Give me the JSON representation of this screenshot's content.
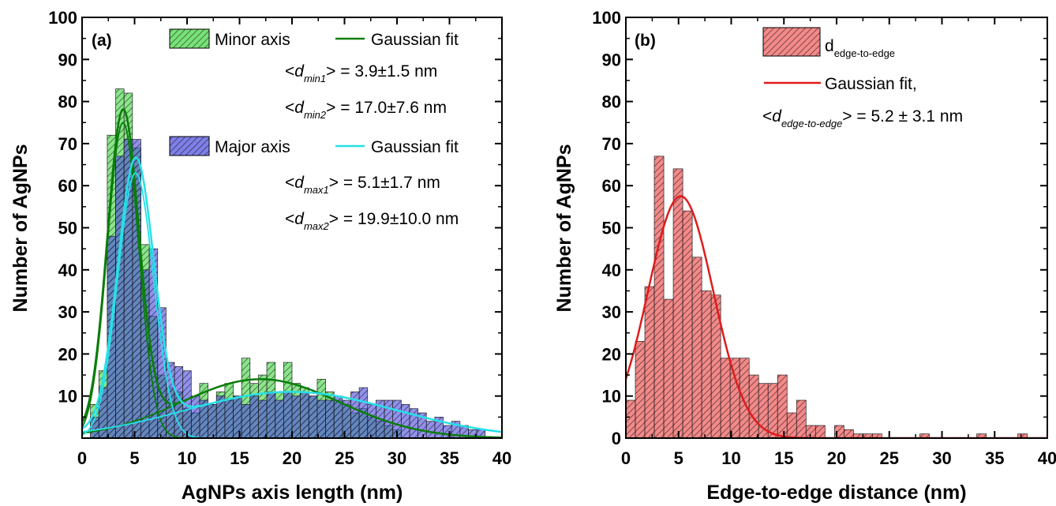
{
  "colors": {
    "minor": "#3fd43f",
    "minor_fit": "#0a7d0a",
    "major": "#4848dd",
    "major_fit": "#26e0e8",
    "edge": "#f06b6b",
    "edge_fit": "#e01b1b"
  },
  "chart_data": [
    {
      "type": "bar",
      "panel_label": "(a)",
      "xlabel": "AgNPs axis length (nm)",
      "ylabel": "Number of AgNPs",
      "xlim": [
        0,
        40
      ],
      "ylim": [
        0,
        100
      ],
      "xticks": [
        "0",
        "5",
        "10",
        "15",
        "20",
        "25",
        "30",
        "35",
        "40"
      ],
      "yticks": [
        "10",
        "20",
        "30",
        "40",
        "50",
        "60",
        "70",
        "80",
        "90",
        "100"
      ],
      "bin_width": 0.8,
      "legend_position": "top-right",
      "legend": {
        "minor_hist": "Minor axis",
        "minor_fit": "Gaussian fit",
        "major_hist": "Major axis",
        "major_fit": "Gaussian fit"
      },
      "annotations": [
        {
          "prefix": "<",
          "sym": "d",
          "sub": "min1",
          "suffix": "> = 3.9±1.5 nm"
        },
        {
          "prefix": "<",
          "sym": "d",
          "sub": "min2",
          "suffix": "> = 17.0±7.6 nm"
        },
        {
          "prefix": "<",
          "sym": "d",
          "sub": "max1",
          "suffix": "> = 5.1±1.7 nm"
        },
        {
          "prefix": "<",
          "sym": "d",
          "sub": "max2",
          "suffix": "> = 19.9±10.0 nm"
        }
      ],
      "series": [
        {
          "name": "Minor axis",
          "bins": [
            [
              1.2,
              8
            ],
            [
              2.0,
              16
            ],
            [
              2.8,
              72
            ],
            [
              3.6,
              83
            ],
            [
              4.4,
              82
            ],
            [
              5.2,
              69
            ],
            [
              6.0,
              46
            ],
            [
              6.8,
              29
            ],
            [
              7.6,
              15
            ],
            [
              8.4,
              12
            ],
            [
              9.2,
              11
            ],
            [
              10.0,
              7
            ],
            [
              10.8,
              6
            ],
            [
              11.6,
              13
            ],
            [
              12.4,
              8
            ],
            [
              13.2,
              11
            ],
            [
              14.0,
              13
            ],
            [
              14.8,
              10
            ],
            [
              15.6,
              19
            ],
            [
              16.4,
              13
            ],
            [
              17.2,
              15
            ],
            [
              18.0,
              18
            ],
            [
              18.8,
              11
            ],
            [
              19.6,
              18
            ],
            [
              20.4,
              13
            ],
            [
              21.2,
              12
            ],
            [
              22.0,
              10
            ],
            [
              22.8,
              14
            ],
            [
              23.6,
              11
            ],
            [
              24.4,
              9
            ],
            [
              25.2,
              8
            ],
            [
              26.0,
              6
            ],
            [
              26.8,
              7
            ],
            [
              27.6,
              5
            ],
            [
              28.4,
              4
            ],
            [
              29.2,
              3
            ],
            [
              30.0,
              2
            ]
          ]
        },
        {
          "name": "Major axis",
          "bins": [
            [
              1.2,
              5
            ],
            [
              2.0,
              12
            ],
            [
              2.8,
              48
            ],
            [
              3.6,
              67
            ],
            [
              4.4,
              71
            ],
            [
              5.2,
              71
            ],
            [
              6.0,
              40
            ],
            [
              6.8,
              45
            ],
            [
              7.6,
              31
            ],
            [
              8.4,
              18
            ],
            [
              9.2,
              17
            ],
            [
              10.0,
              16
            ],
            [
              10.8,
              10
            ],
            [
              11.6,
              9
            ],
            [
              12.4,
              8
            ],
            [
              13.2,
              10
            ],
            [
              14.0,
              9
            ],
            [
              14.8,
              10
            ],
            [
              15.6,
              8
            ],
            [
              16.4,
              10
            ],
            [
              17.2,
              9
            ],
            [
              18.0,
              11
            ],
            [
              18.8,
              9
            ],
            [
              19.6,
              11
            ],
            [
              20.4,
              10
            ],
            [
              21.2,
              11
            ],
            [
              22.0,
              10
            ],
            [
              22.8,
              9
            ],
            [
              23.6,
              9
            ],
            [
              24.4,
              10
            ],
            [
              25.2,
              9
            ],
            [
              26.0,
              11
            ],
            [
              26.8,
              12
            ],
            [
              27.6,
              8
            ],
            [
              28.4,
              9
            ],
            [
              29.2,
              9
            ],
            [
              30.0,
              9
            ],
            [
              30.8,
              8
            ],
            [
              31.6,
              7
            ],
            [
              32.4,
              6
            ],
            [
              33.2,
              4
            ],
            [
              34.0,
              5
            ],
            [
              34.8,
              3
            ],
            [
              35.6,
              4
            ],
            [
              36.4,
              3
            ],
            [
              37.2,
              2
            ],
            [
              38.0,
              2
            ]
          ]
        },
        {
          "name": "Gaussian fit",
          "curve": "minor",
          "components": [
            {
              "amp": 75,
              "mu": 3.9,
              "sigma": 1.5
            },
            {
              "amp": 14,
              "mu": 17.0,
              "sigma": 7.6
            }
          ]
        },
        {
          "name": "Gaussian fit",
          "curve": "major",
          "components": [
            {
              "amp": 63,
              "mu": 5.1,
              "sigma": 1.7
            },
            {
              "amp": 11,
              "mu": 19.9,
              "sigma": 10.0
            }
          ]
        }
      ]
    },
    {
      "type": "bar",
      "panel_label": "(b)",
      "xlabel": "Edge-to-edge distance (nm)",
      "ylabel": "Number of AgNPs",
      "xlim": [
        0,
        40
      ],
      "ylim": [
        0,
        100
      ],
      "xticks": [
        "0",
        "5",
        "10",
        "15",
        "20",
        "25",
        "30",
        "35",
        "40"
      ],
      "yticks": [
        "0",
        "10",
        "20",
        "30",
        "40",
        "50",
        "60",
        "70",
        "80",
        "90",
        "100"
      ],
      "bin_width": 0.9,
      "legend_position": "top-right",
      "legend": {
        "hist_main": "d",
        "hist_sub": "edge-to-edge",
        "fit": "Gaussian fit,"
      },
      "annotations": [
        {
          "prefix": "<",
          "sym": "d",
          "sub": "edge-to-edge",
          "suffix": "> = 5.2 ± 3.1  nm"
        }
      ],
      "series": [
        {
          "name": "d edge-to-edge",
          "bins": [
            [
              0.45,
              9
            ],
            [
              1.35,
              23
            ],
            [
              2.25,
              36
            ],
            [
              3.15,
              67
            ],
            [
              4.05,
              33
            ],
            [
              4.95,
              64
            ],
            [
              5.85,
              54
            ],
            [
              6.75,
              43
            ],
            [
              7.65,
              35
            ],
            [
              8.55,
              34
            ],
            [
              9.45,
              19
            ],
            [
              10.35,
              19
            ],
            [
              11.25,
              19
            ],
            [
              12.15,
              15
            ],
            [
              13.05,
              13
            ],
            [
              13.95,
              13
            ],
            [
              14.85,
              15
            ],
            [
              15.75,
              6
            ],
            [
              16.65,
              9
            ],
            [
              17.55,
              3
            ],
            [
              18.45,
              3
            ],
            [
              19.35,
              0
            ],
            [
              20.25,
              3
            ],
            [
              21.15,
              2
            ],
            [
              22.05,
              1
            ],
            [
              22.95,
              1
            ],
            [
              23.85,
              1
            ],
            [
              28.35,
              1
            ],
            [
              33.75,
              1
            ],
            [
              37.65,
              1
            ]
          ]
        },
        {
          "name": "Gaussian fit,",
          "curve": "edge",
          "components": [
            {
              "amp": 57.5,
              "mu": 5.2,
              "sigma": 3.1
            }
          ]
        }
      ]
    }
  ]
}
